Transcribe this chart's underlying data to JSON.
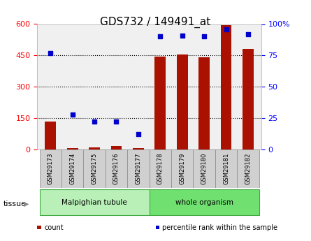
{
  "title": "GDS732 / 149491_at",
  "samples": [
    "GSM29173",
    "GSM29174",
    "GSM29175",
    "GSM29176",
    "GSM29177",
    "GSM29178",
    "GSM29179",
    "GSM29180",
    "GSM29181",
    "GSM29182"
  ],
  "counts": [
    135,
    8,
    10,
    18,
    8,
    445,
    455,
    440,
    595,
    480
  ],
  "percentiles": [
    77,
    28,
    22,
    22,
    12,
    90,
    91,
    90,
    96,
    92
  ],
  "groups": [
    {
      "label": "Malpighian tubule",
      "start": 0,
      "end": 5,
      "color": "#b8f0b8"
    },
    {
      "label": "whole organism",
      "start": 5,
      "end": 10,
      "color": "#70e070"
    }
  ],
  "bar_color": "#aa1100",
  "dot_color": "#0000cc",
  "ylim_left": [
    0,
    600
  ],
  "ylim_right": [
    0,
    100
  ],
  "yticks_left": [
    0,
    150,
    300,
    450,
    600
  ],
  "yticks_right": [
    0,
    25,
    50,
    75,
    100
  ],
  "yticklabels_right": [
    "0",
    "25",
    "50",
    "75",
    "100%"
  ],
  "bg_color": "#f0f0f0",
  "grid_color": "black",
  "legend": [
    {
      "label": "count",
      "color": "#aa1100"
    },
    {
      "label": "percentile rank within the sample",
      "color": "#0000cc"
    }
  ],
  "tissue_label": "tissue"
}
